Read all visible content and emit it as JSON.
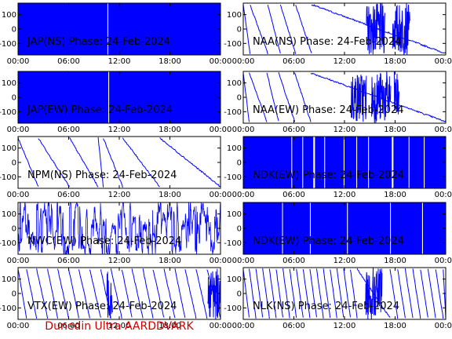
{
  "figure": {
    "footer": "Dunedin Ultra AARDDVARK",
    "series_color": "#0000ff",
    "footer_color": "#cc0000"
  },
  "chart_data": [
    {
      "type": "line",
      "title": "JAP(NS) Phase: 24-Feb-2024",
      "x_ticks": [
        "00:00",
        "06:00",
        "12:00",
        "18:00",
        "00:00"
      ],
      "y_ticks": [
        100,
        0,
        -100
      ],
      "xlim": [
        0,
        24
      ],
      "ylim": [
        -180,
        180
      ],
      "pattern": "saturated",
      "gaps": [
        [
          10.6,
          10.7
        ]
      ]
    },
    {
      "type": "line",
      "title": "NAA(NS) Phase: 24-Feb-2024",
      "x_ticks": [
        "00:00",
        "06:00",
        "12:00",
        "18:00",
        "00:00"
      ],
      "y_ticks": [
        100,
        0,
        -100
      ],
      "xlim": [
        0,
        24
      ],
      "ylim": [
        -180,
        180
      ],
      "pattern": "wraps",
      "wrap_x": [
        0.8,
        2.9,
        4.4,
        6.2,
        8.1
      ],
      "noisy": [
        [
          14.6,
          16.8
        ],
        [
          17.7,
          19.8
        ]
      ]
    },
    {
      "type": "line",
      "title": "JAP(EW) Phase: 24-Feb-2024",
      "x_ticks": [
        "00:00",
        "06:00",
        "12:00",
        "18:00",
        "00:00"
      ],
      "y_ticks": [
        100,
        0,
        -100
      ],
      "xlim": [
        0,
        24
      ],
      "ylim": [
        -180,
        180
      ],
      "pattern": "saturated",
      "gaps": [
        [
          10.7,
          10.8
        ]
      ]
    },
    {
      "type": "line",
      "title": "NAA(EW) Phase: 24-Feb-2024",
      "x_ticks": [
        "00:00",
        "06:00",
        "12:00",
        "18:00",
        "00:00"
      ],
      "y_ticks": [
        100,
        0,
        -100
      ],
      "xlim": [
        0,
        24
      ],
      "ylim": [
        -180,
        180
      ],
      "pattern": "wraps",
      "wrap_x": [
        0.7,
        2.8,
        4.2,
        6.1,
        8.0
      ],
      "noisy": [
        [
          12.8,
          14.6
        ],
        [
          15.2,
          17.5
        ],
        [
          17.9,
          18.5
        ]
      ]
    },
    {
      "type": "line",
      "title": "NPM(NS) Phase: 24-Feb-2024",
      "x_ticks": [
        "00:00",
        "06:00",
        "12:00",
        "18:00",
        "00:00"
      ],
      "y_ticks": [
        100,
        0,
        -100
      ],
      "xlim": [
        0,
        24
      ],
      "ylim": [
        -180,
        180
      ],
      "pattern": "wraps",
      "wrap_x": [
        2.4,
        6.1,
        9.5,
        10.1,
        12.4,
        16.8
      ],
      "noisy": []
    },
    {
      "type": "line",
      "title": "NDK(EW) Phase: 24-Feb-2024",
      "x_ticks": [
        "00:00",
        "06:00",
        "12:00",
        "18:00",
        "00:00"
      ],
      "y_ticks": [
        100,
        0,
        -100
      ],
      "xlim": [
        0,
        24
      ],
      "ylim": [
        -180,
        180
      ],
      "pattern": "saturated",
      "gaps": [
        [
          5.7,
          5.8
        ],
        [
          7.0,
          7.1
        ],
        [
          8.3,
          8.5
        ],
        [
          9.6,
          9.7
        ],
        [
          11.9,
          12.0
        ],
        [
          13.4,
          13.5
        ],
        [
          14.8,
          14.9
        ],
        [
          17.6,
          17.8
        ],
        [
          19.6,
          19.7
        ],
        [
          21.4,
          21.5
        ]
      ]
    },
    {
      "type": "line",
      "title": "NWC(EW) Phase: 24-Feb-2024",
      "x_ticks": [
        "00:00",
        "06:00",
        "12:00",
        "18:00",
        "00:00"
      ],
      "y_ticks": [
        100,
        0,
        -100
      ],
      "xlim": [
        0,
        24
      ],
      "ylim": [
        -180,
        180
      ],
      "pattern": "chaotic",
      "gaps": []
    },
    {
      "type": "line",
      "title": "NDK(EW) Phase: 24-Feb-2024",
      "x_ticks": [
        "00:00",
        "06:00",
        "12:00",
        "18:00",
        "00:00"
      ],
      "y_ticks": [
        100,
        0,
        -100
      ],
      "xlim": [
        0,
        24
      ],
      "ylim": [
        -180,
        180
      ],
      "pattern": "saturated",
      "gaps": [
        [
          4.6,
          4.7
        ],
        [
          7.9,
          8.0
        ],
        [
          12.3,
          12.4
        ],
        [
          17.4,
          17.5
        ],
        [
          21.2,
          21.3
        ]
      ]
    },
    {
      "type": "line",
      "title": "VTX(EW) Phase: 24-Feb-2024",
      "x_ticks": [
        "00:00",
        "06:00",
        "12:00",
        "18:00",
        "00:00"
      ],
      "y_ticks": [
        100,
        0,
        -100
      ],
      "xlim": [
        0,
        24
      ],
      "ylim": [
        -180,
        180
      ],
      "pattern": "wraps",
      "wrap_x": [
        1.0,
        2.2,
        3.5,
        4.7,
        6.0,
        7.2,
        8.5,
        9.8,
        11.0,
        12.3,
        13.5,
        14.8,
        16.0,
        17.3,
        18.6,
        19.8,
        21.1,
        22.4
      ],
      "noisy": [
        [
          10.5,
          11.2
        ],
        [
          22.5,
          24.0
        ]
      ]
    },
    {
      "type": "line",
      "title": "NLK(NS) Phase: 24-Feb-2024",
      "x_ticks": [
        "00:00",
        "06:00",
        "12:00",
        "18:00",
        "00:00"
      ],
      "y_ticks": [
        100,
        0,
        -100
      ],
      "xlim": [
        0,
        24
      ],
      "ylim": [
        -180,
        180
      ],
      "pattern": "wraps",
      "wrap_x": [
        0.7,
        1.5,
        2.3,
        3.1,
        3.9,
        4.7,
        5.5,
        6.3,
        7.1,
        7.9,
        8.7,
        9.5,
        10.3,
        11.1,
        11.9,
        12.7,
        13.5,
        17.4,
        18.3,
        19.2,
        20.1,
        21.0,
        21.9,
        22.8,
        23.7
      ],
      "noisy": [
        [
          14.5,
          16.5
        ]
      ]
    }
  ]
}
